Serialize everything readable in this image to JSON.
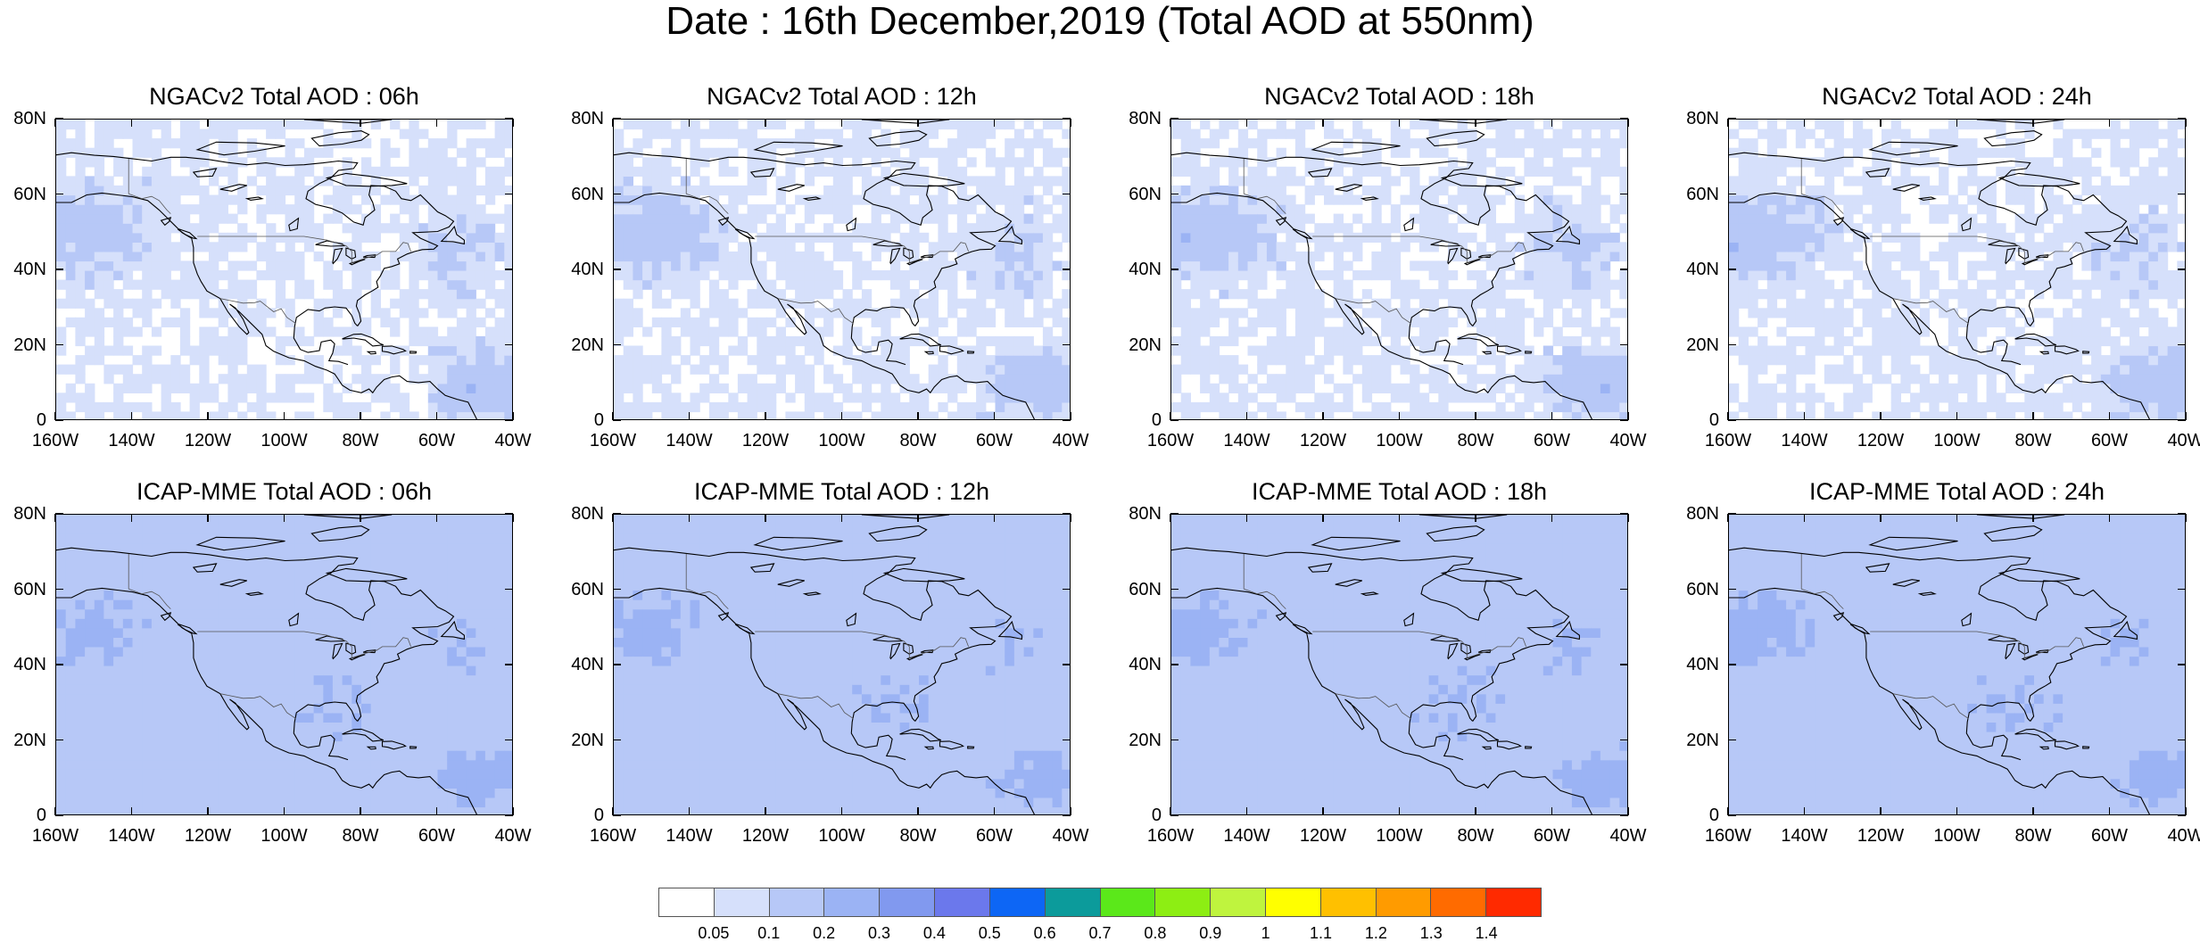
{
  "title": "Date : 16th December,2019 (Total AOD at 550nm)",
  "lat_labels": [
    "80N",
    "60N",
    "40N",
    "20N",
    "0"
  ],
  "lon_labels": [
    "160W",
    "140W",
    "120W",
    "100W",
    "80W",
    "60W",
    "40W"
  ],
  "panels": [
    {
      "title": "NGACv2 Total AOD : 06h"
    },
    {
      "title": "NGACv2 Total AOD : 12h"
    },
    {
      "title": "NGACv2 Total AOD : 18h"
    },
    {
      "title": "NGACv2 Total AOD : 24h"
    },
    {
      "title": "ICAP-MME Total AOD : 06h"
    },
    {
      "title": "ICAP-MME Total AOD : 12h"
    },
    {
      "title": "ICAP-MME Total AOD : 18h"
    },
    {
      "title": "ICAP-MME Total AOD : 24h"
    }
  ],
  "map_extent": {
    "lon_min": -160,
    "lon_max": -40,
    "lat_min": 0,
    "lat_max": 80
  },
  "colorbar": {
    "labels": [
      "0.05",
      "0.1",
      "0.2",
      "0.3",
      "0.4",
      "0.5",
      "0.6",
      "0.7",
      "0.8",
      "0.9",
      "1",
      "1.1",
      "1.2",
      "1.3",
      "1.4"
    ],
    "colors": [
      "#ffffff",
      "#d6e0fb",
      "#b7c8f7",
      "#9bb3f4",
      "#8199ef",
      "#6b78ec",
      "#0d66f5",
      "#0c9b9b",
      "#5be81a",
      "#8dee13",
      "#bff43e",
      "#ffff00",
      "#ffc000",
      "#ff9b00",
      "#ff6b00",
      "#ff2a00"
    ]
  }
}
